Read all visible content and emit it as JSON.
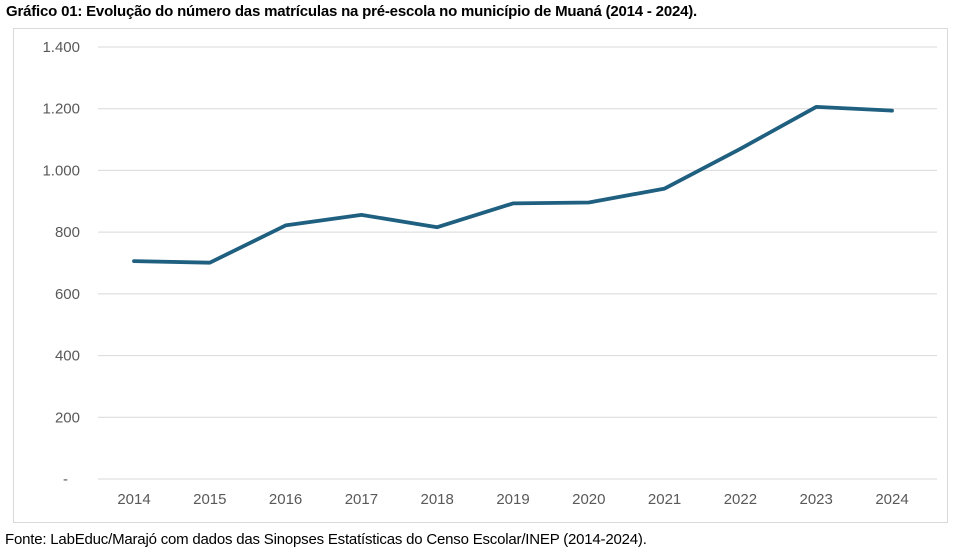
{
  "title": "Gráfico 01: Evolução do número das matrículas na pré-escola no município de Muaná (2014 - 2024).",
  "source": "Fonte: LabEduc/Marajó com dados das Sinopses Estatísticas do Censo Escolar/INEP (2014-2024).",
  "colors": {
    "line": "#1f5f7f",
    "grid": "#d9d9d9",
    "axis_text": "#595959",
    "frame_border": "#d9d9d9",
    "background": "#ffffff",
    "title_text": "#000000"
  },
  "chart_data": {
    "type": "line",
    "categories": [
      "2014",
      "2015",
      "2016",
      "2017",
      "2018",
      "2019",
      "2020",
      "2021",
      "2022",
      "2023",
      "2024"
    ],
    "series": [
      {
        "name": "Matrículas na pré-escola",
        "values": [
          706,
          701,
          822,
          856,
          816,
          893,
          896,
          941,
          1070,
          1206,
          1194
        ]
      }
    ],
    "title": "Gráfico 01: Evolução do número das matrículas na pré-escola no município de Muaná (2014 - 2024).",
    "xlabel": "",
    "ylabel": "",
    "ylim": [
      0,
      1400
    ],
    "ytick_step": 200,
    "ytick_labels": [
      "-",
      "200",
      "400",
      "600",
      "800",
      "1.000",
      "1.200",
      "1.400"
    ],
    "grid": "horizontal",
    "legend": "none"
  }
}
